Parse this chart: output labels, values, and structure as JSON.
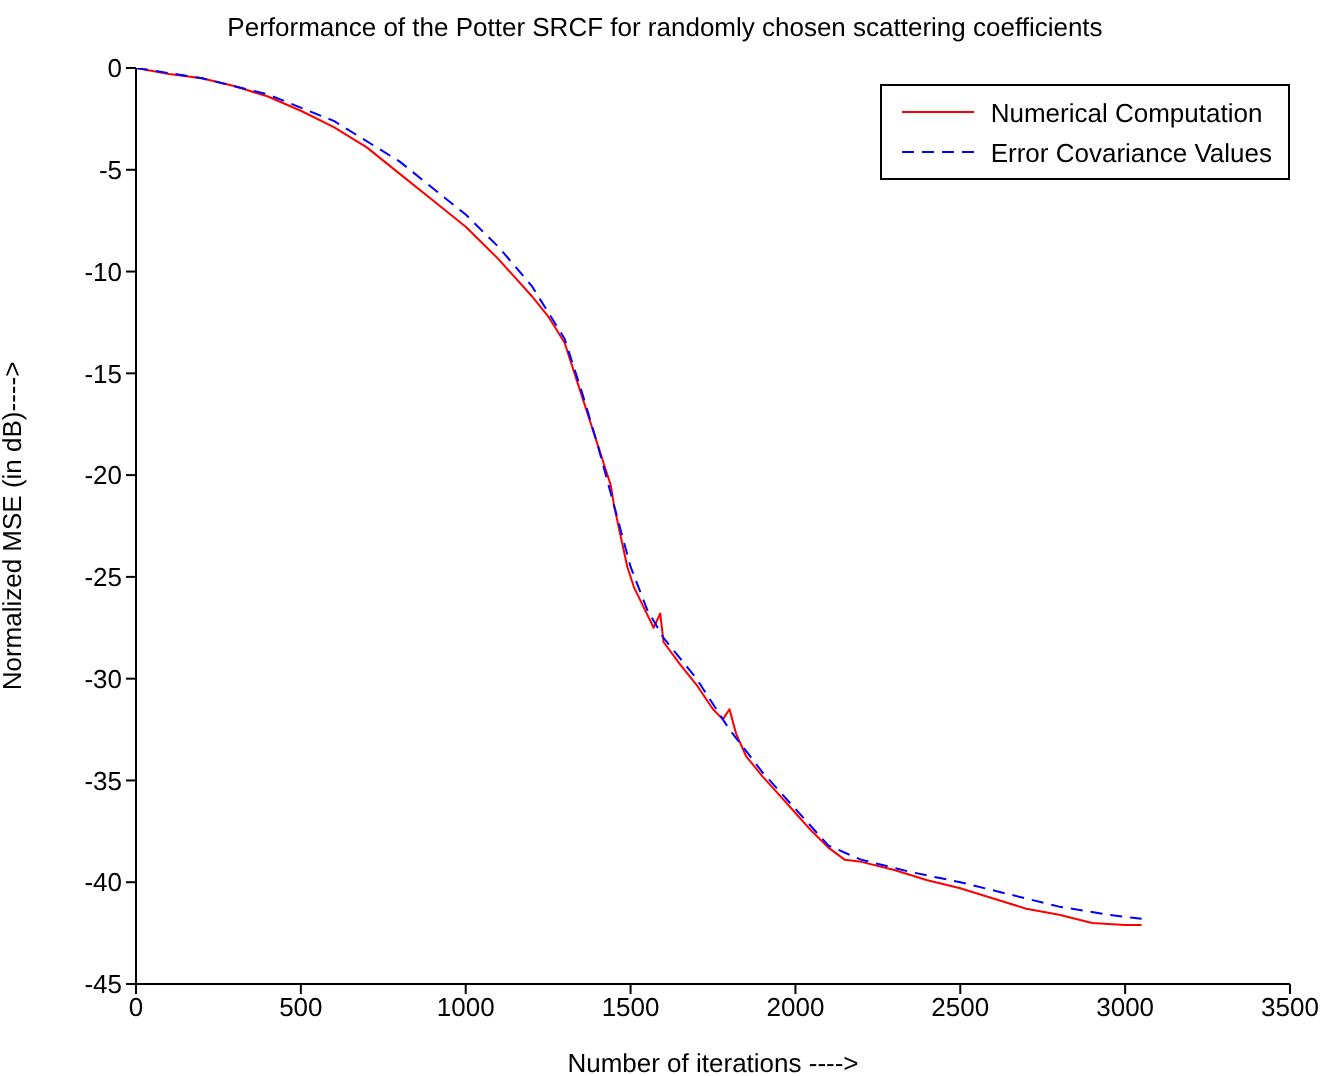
{
  "chart_data": {
    "type": "line",
    "title": "Performance of the Potter SRCF for randomly chosen scattering coefficients",
    "xlabel": "Number of iterations ---->",
    "ylabel": "Normalized MSE (in dB)---->",
    "xlim": [
      0,
      3500
    ],
    "xticks": [
      0,
      500,
      1000,
      1500,
      2000,
      2500,
      3000,
      3500
    ],
    "ylim": [
      -45,
      0
    ],
    "yticks": [
      -45,
      -40,
      -35,
      -30,
      -25,
      -20,
      -15,
      -10,
      -5,
      0
    ],
    "grid": false,
    "legend": "top right",
    "series": [
      {
        "name": "Numerical Computation",
        "color": "#ff0000",
        "line_style": "solid",
        "x": [
          0,
          100,
          200,
          300,
          400,
          500,
          600,
          700,
          800,
          900,
          1000,
          1050,
          1100,
          1150,
          1200,
          1250,
          1300,
          1330,
          1360,
          1390,
          1420,
          1440,
          1450,
          1470,
          1490,
          1510,
          1540,
          1570,
          1590,
          1600,
          1650,
          1700,
          1750,
          1780,
          1800,
          1820,
          1850,
          1900,
          1950,
          2000,
          2050,
          2100,
          2150,
          2200,
          2300,
          2400,
          2500,
          2600,
          2700,
          2800,
          2900,
          3000,
          3050
        ],
        "values": [
          0,
          -0.3,
          -0.5,
          -0.9,
          -1.4,
          -2.1,
          -2.9,
          -3.9,
          -5.2,
          -6.5,
          -7.8,
          -8.6,
          -9.4,
          -10.3,
          -11.2,
          -12.2,
          -13.5,
          -15,
          -16.5,
          -18,
          -19.5,
          -20.5,
          -21.5,
          -23,
          -24.5,
          -25.5,
          -26.5,
          -27.5,
          -26.8,
          -28.2,
          -29.3,
          -30.3,
          -31.5,
          -32,
          -31.5,
          -32.7,
          -33.8,
          -34.8,
          -35.7,
          -36.6,
          -37.5,
          -38.3,
          -38.9,
          -39,
          -39.4,
          -39.9,
          -40.3,
          -40.8,
          -41.3,
          -41.6,
          -42,
          -42.1,
          -42.1
        ]
      },
      {
        "name": "Error Covariance Values",
        "color": "#0000ff",
        "line_style": "dashed",
        "x": [
          0,
          200,
          400,
          600,
          800,
          1000,
          1100,
          1200,
          1300,
          1350,
          1400,
          1450,
          1500,
          1550,
          1600,
          1700,
          1800,
          1900,
          2000,
          2100,
          2200,
          2350,
          2500,
          2650,
          2800,
          2950,
          3050
        ],
        "values": [
          0,
          -0.5,
          -1.3,
          -2.6,
          -4.6,
          -7.2,
          -8.8,
          -10.7,
          -13.3,
          -15.8,
          -18.5,
          -21.5,
          -24.5,
          -26.6,
          -28,
          -30,
          -32.5,
          -34.6,
          -36.4,
          -38.2,
          -38.9,
          -39.5,
          -40,
          -40.6,
          -41.2,
          -41.6,
          -41.8
        ]
      }
    ]
  }
}
